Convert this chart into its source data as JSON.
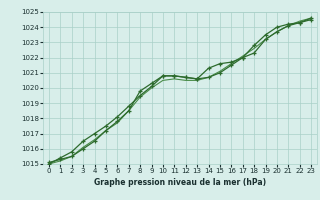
{
  "title": "Graphe pression niveau de la mer (hPa)",
  "x_hours": [
    0,
    1,
    2,
    3,
    4,
    5,
    6,
    7,
    8,
    9,
    10,
    11,
    12,
    13,
    14,
    15,
    16,
    17,
    18,
    19,
    20,
    21,
    22,
    23
  ],
  "line1": [
    1015.1,
    1015.3,
    1015.5,
    1016.0,
    1016.5,
    1017.2,
    1017.8,
    1018.5,
    1019.8,
    1020.3,
    1020.8,
    1020.8,
    1020.7,
    1020.6,
    1021.3,
    1021.6,
    1021.7,
    1022.0,
    1022.3,
    1023.2,
    1023.7,
    1024.1,
    1024.3,
    1024.6
  ],
  "line2": [
    1015.0,
    1015.4,
    1015.8,
    1016.5,
    1017.0,
    1017.5,
    1018.1,
    1018.8,
    1019.5,
    1020.1,
    1020.8,
    1020.8,
    1020.7,
    1020.6,
    1020.7,
    1021.0,
    1021.5,
    1022.0,
    1022.8,
    1023.5,
    1024.0,
    1024.2,
    1024.3,
    1024.5
  ],
  "line3_smooth": [
    1015.0,
    1015.2,
    1015.5,
    1016.1,
    1016.6,
    1017.2,
    1017.7,
    1018.5,
    1019.4,
    1020.0,
    1020.5,
    1020.6,
    1020.5,
    1020.5,
    1020.7,
    1021.1,
    1021.6,
    1022.1,
    1022.6,
    1023.2,
    1023.7,
    1024.1,
    1024.4,
    1024.6
  ],
  "bg_color": "#d8eeea",
  "grid_color": "#aad0c8",
  "line_color": "#2d6b2d",
  "line_color2": "#4a8c4a",
  "title_color": "#1a3030",
  "ylim": [
    1015,
    1025
  ],
  "yticks": [
    1015,
    1016,
    1017,
    1018,
    1019,
    1020,
    1021,
    1022,
    1023,
    1024,
    1025
  ],
  "xticks": [
    0,
    1,
    2,
    3,
    4,
    5,
    6,
    7,
    8,
    9,
    10,
    11,
    12,
    13,
    14,
    15,
    16,
    17,
    18,
    19,
    20,
    21,
    22,
    23
  ],
  "tick_fontsize": 5.0,
  "title_fontsize": 5.5,
  "figsize": [
    3.2,
    2.0
  ],
  "dpi": 100
}
